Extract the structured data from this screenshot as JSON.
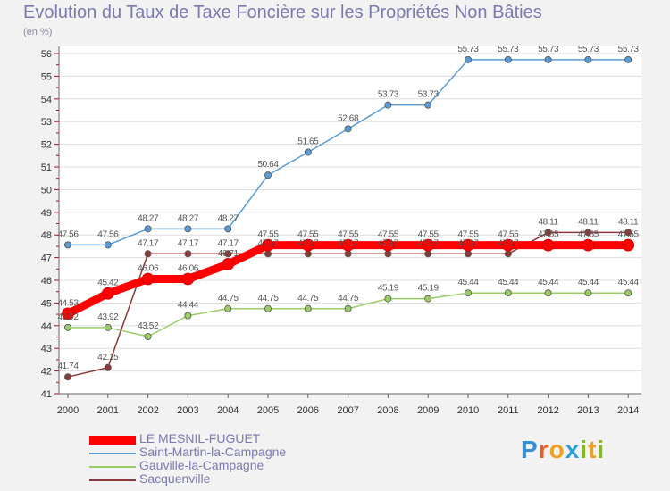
{
  "title": "Evolution du Taux de Taxe Foncière sur les Propriétés Non Bâties",
  "unit": "(en %)",
  "logo": {
    "text": "Proxiti",
    "letters": [
      {
        "ch": "P",
        "color": "#3a8fd0"
      },
      {
        "ch": "r",
        "color": "#e06030"
      },
      {
        "ch": "o",
        "color": "#f0a020"
      },
      {
        "ch": "x",
        "color": "#2a9fd8"
      },
      {
        "ch": "i",
        "color": "#88b820"
      },
      {
        "ch": "t",
        "color": "#f0a020"
      },
      {
        "ch": "i",
        "color": "#88b820"
      }
    ]
  },
  "chart_data": {
    "type": "line",
    "title": "Evolution du Taux de Taxe Foncière sur les Propriétés Non Bâties",
    "ylabel": "(en %)",
    "xlabel": "",
    "ylim": [
      41,
      56
    ],
    "yticks": [
      41,
      42,
      43,
      44,
      45,
      46,
      47,
      48,
      49,
      50,
      51,
      52,
      53,
      54,
      55,
      56
    ],
    "x": [
      "2000",
      "2001",
      "2002",
      "2003",
      "2004",
      "2005",
      "2006",
      "2007",
      "2008",
      "2009",
      "2010",
      "2011",
      "2012",
      "2013",
      "2014"
    ],
    "grid": "horizontal",
    "legend": "bottom-left",
    "series": [
      {
        "name": "LE MESNIL-FUGUET",
        "color": "#ff0000",
        "emphasis": true,
        "values": [
          44.53,
          45.42,
          46.06,
          46.06,
          46.71,
          47.55,
          47.55,
          47.55,
          47.55,
          47.55,
          47.55,
          47.55,
          47.55,
          47.55,
          47.55
        ],
        "labels": [
          "44.53",
          "45.42",
          "46.06",
          "46.06",
          "46.71",
          "47.55",
          "47.55",
          "47.55",
          "47.55",
          "47.55",
          "47.55",
          "47.55",
          "47.55",
          "47.55",
          "47.55"
        ]
      },
      {
        "name": "Saint-Martin-la-Campagne",
        "color": "#5b9bd5",
        "values": [
          47.56,
          47.56,
          48.27,
          48.27,
          48.27,
          50.64,
          51.65,
          52.68,
          53.73,
          53.73,
          55.73,
          55.73,
          55.73,
          55.73,
          55.73
        ],
        "labels": [
          "47.56",
          "47.56",
          "48.27",
          "48.27",
          "48.27",
          "50.64",
          "51.65",
          "52.68",
          "53.73",
          "53.73",
          "55.73",
          "55.73",
          "55.73",
          "55.73",
          "55.73"
        ]
      },
      {
        "name": "Gauville-la-Campagne",
        "color": "#99cc66",
        "values": [
          43.92,
          43.92,
          43.52,
          44.44,
          44.75,
          44.75,
          44.75,
          44.75,
          45.19,
          45.19,
          45.44,
          45.44,
          45.44,
          45.44,
          45.44
        ],
        "labels": [
          "43.92",
          "43.92",
          "43.52",
          "44.44",
          "44.75",
          "44.75",
          "44.75",
          "44.75",
          "45.19",
          "45.19",
          "45.44",
          "45.44",
          "45.44",
          "45.44",
          "45.44"
        ]
      },
      {
        "name": "Sacquenville",
        "color": "#8b3a3a",
        "values": [
          41.74,
          42.15,
          47.17,
          47.17,
          47.17,
          47.17,
          47.17,
          47.17,
          47.17,
          47.17,
          47.17,
          47.17,
          48.11,
          48.11,
          48.11
        ],
        "labels": [
          "41.74",
          "42.15",
          "47.17",
          "47.17",
          "47.17",
          "47.17",
          "47.17",
          "47.17",
          "47.17",
          "47.17",
          "47.17",
          "47.17",
          "48.11",
          "48.11",
          "48.11"
        ]
      }
    ]
  }
}
